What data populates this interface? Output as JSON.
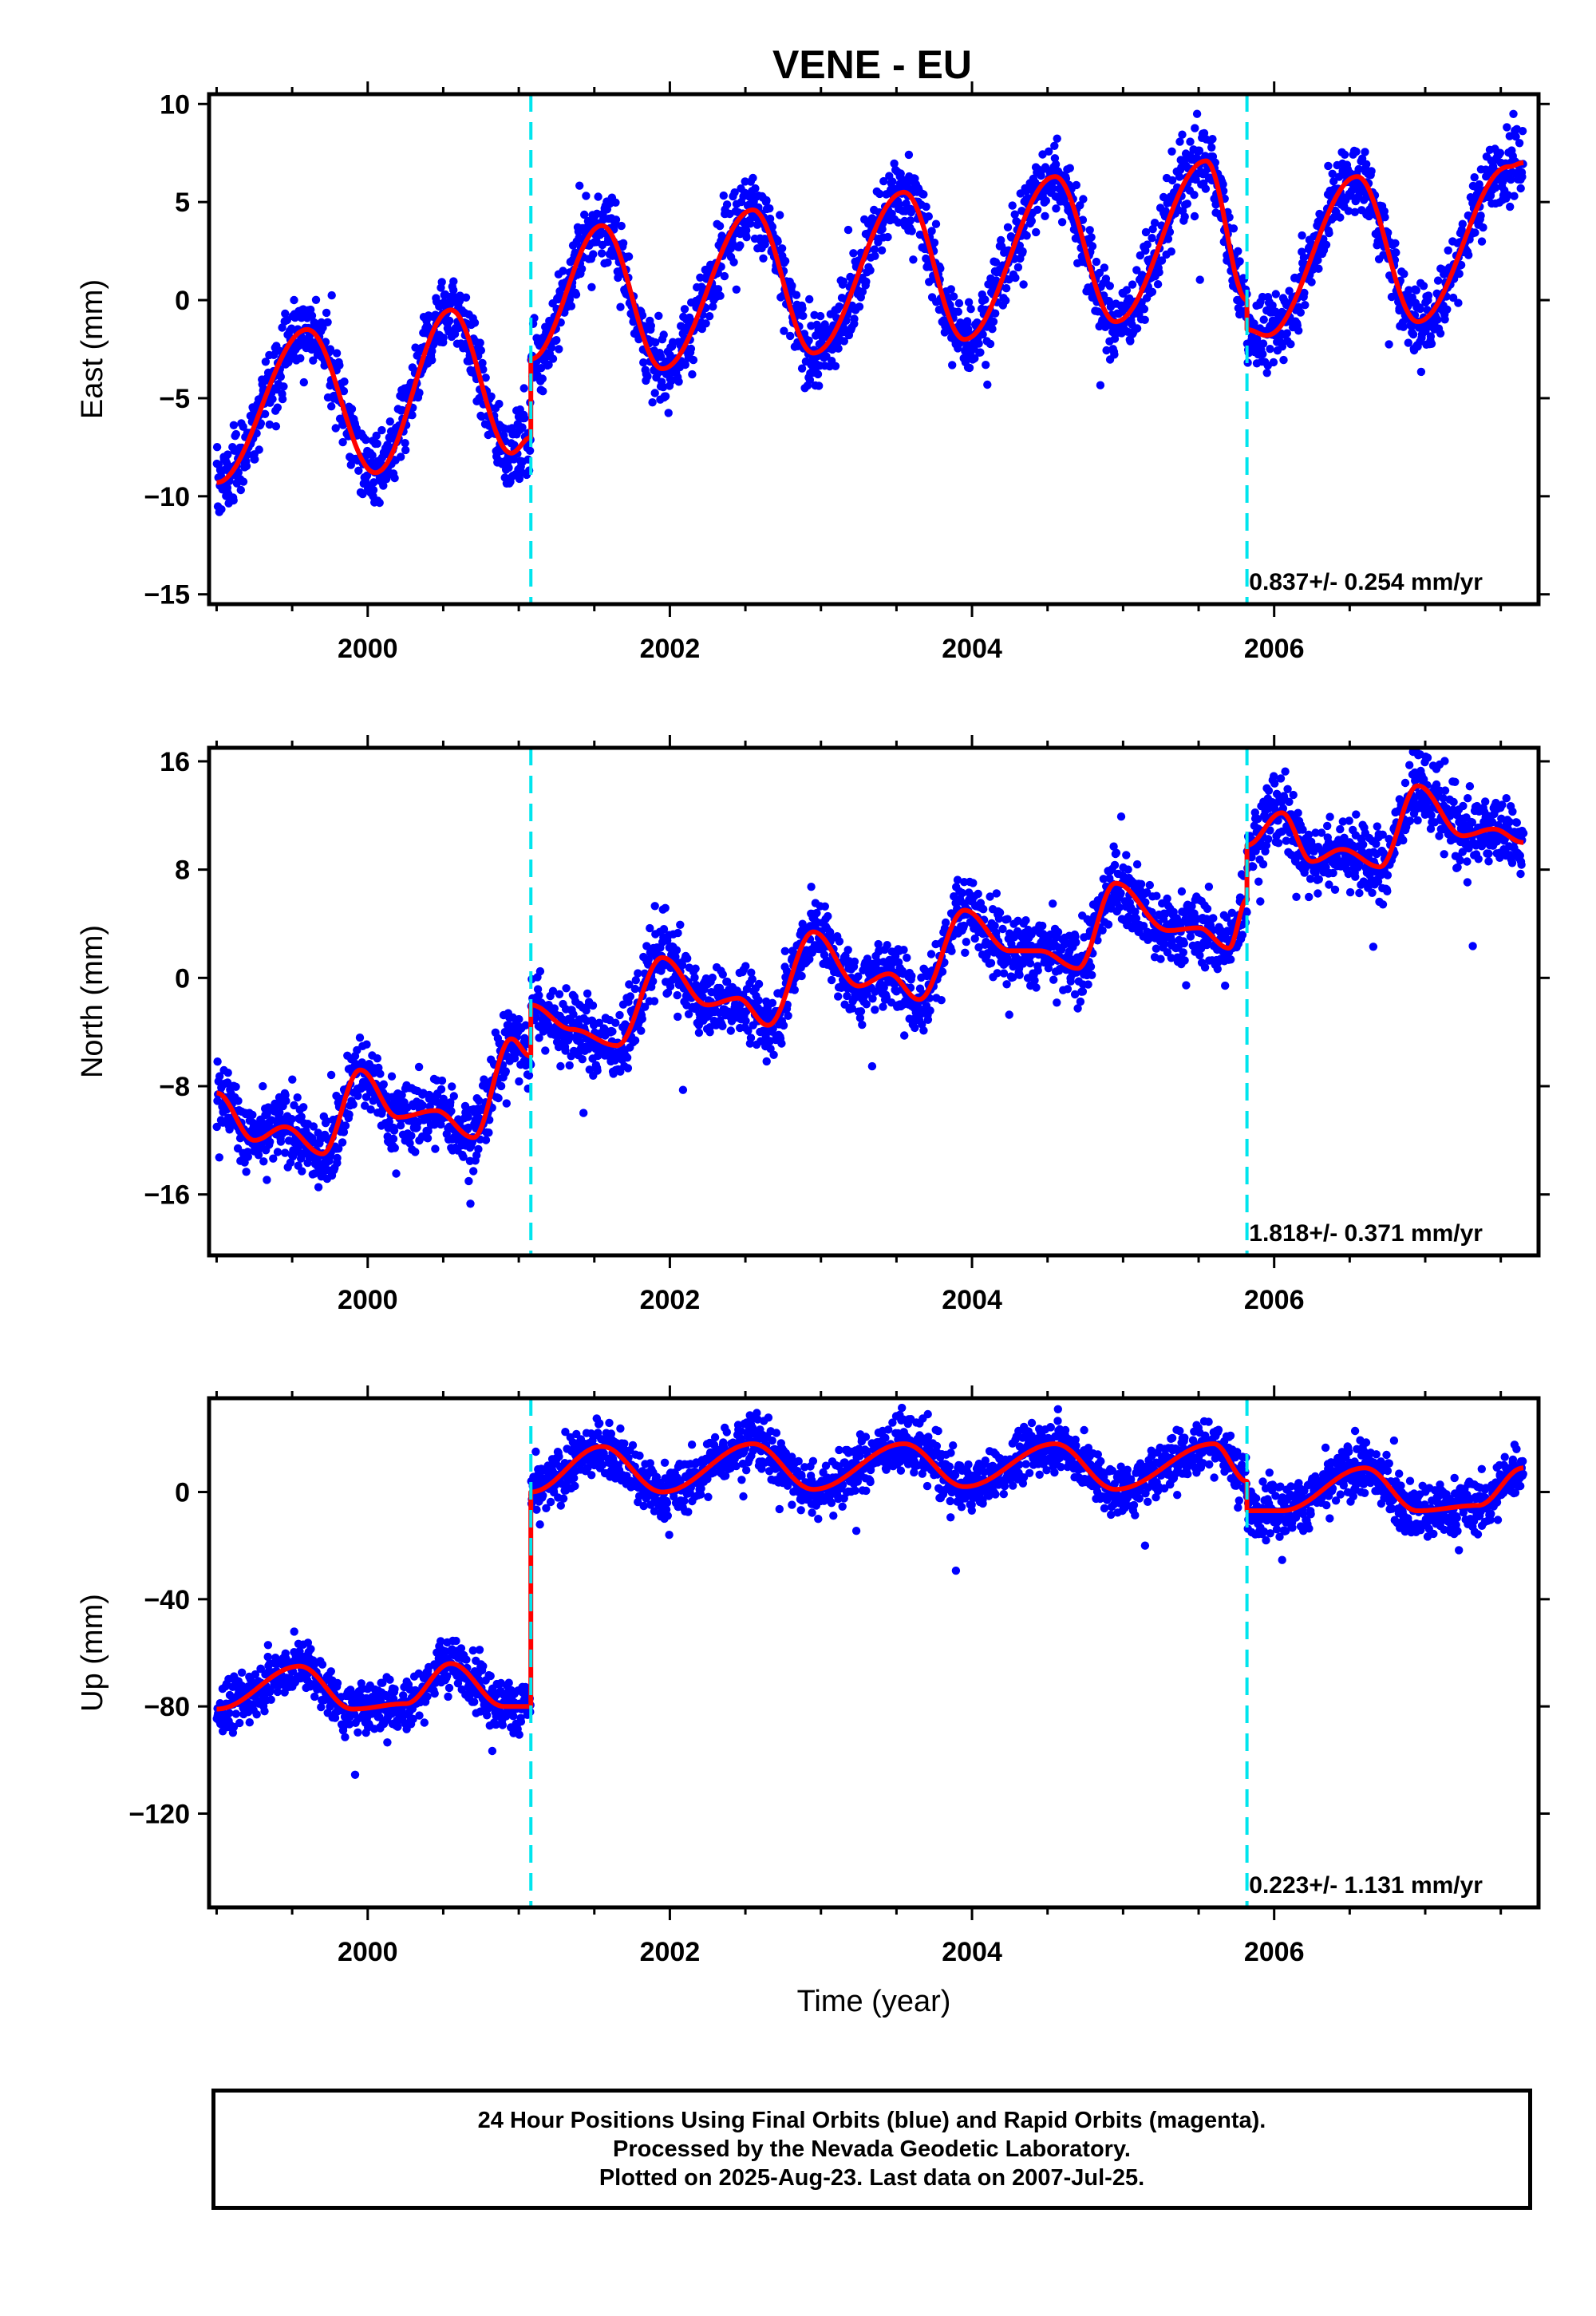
{
  "title": "VENE - EU",
  "colors": {
    "points": "#0000ff",
    "fit": "#ff0000",
    "breaks": "#00e5ee",
    "frame": "#000000"
  },
  "chart_data": [
    {
      "type": "scatter",
      "ylabel": "East (mm)",
      "ylim": [
        -15.5,
        10.5
      ],
      "yticks": [
        10,
        5,
        0,
        -5,
        -10,
        -15
      ],
      "ytick_labels": [
        "10",
        "5",
        "0",
        "−5",
        "−10",
        "−15"
      ],
      "xlim": [
        1998.95,
        2007.75
      ],
      "xticks": [
        2000,
        2002,
        2004,
        2006
      ],
      "breaks": [
        2001.08,
        2005.82
      ],
      "rate_label": "0.837+/- 0.254 mm/yr",
      "fit": {
        "segments": [
          {
            "x": [
              1999.0,
              1999.6,
              2000.05,
              2000.55,
              2000.95,
              2001.08
            ],
            "y": [
              -9.3,
              -1.5,
              -8.8,
              -0.5,
              -7.8,
              -7.0
            ]
          },
          {
            "x": [
              2001.08,
              2001.55,
              2001.95,
              2002.55,
              2002.95,
              2003.55,
              2003.95,
              2004.55,
              2004.95,
              2005.55,
              2005.82
            ],
            "y": [
              -3.0,
              3.8,
              -3.5,
              4.6,
              -2.7,
              5.5,
              -2.0,
              6.3,
              -1.1,
              7.1,
              0.0
            ]
          },
          {
            "x": [
              2005.82,
              2005.95,
              2006.55,
              2006.95,
              2007.55,
              2007.65
            ],
            "y": [
              -1.5,
              -1.8,
              6.3,
              -1.1,
              6.8,
              7.0
            ]
          }
        ]
      },
      "scatter_noise": 1.3
    },
    {
      "type": "scatter",
      "ylabel": "North (mm)",
      "ylim": [
        -20.5,
        17.0
      ],
      "yticks": [
        16,
        8,
        0,
        -8,
        -16
      ],
      "ytick_labels": [
        "16",
        "8",
        "0",
        "−8",
        "−16"
      ],
      "xlim": [
        1998.95,
        2007.75
      ],
      "xticks": [
        2000,
        2002,
        2004,
        2006
      ],
      "breaks": [
        2001.08,
        2005.82
      ],
      "rate_label": "1.818+/- 0.371 mm/yr",
      "fit": {
        "segments": [
          {
            "x": [
              1999.0,
              1999.25,
              1999.45,
              1999.7,
              1999.95,
              2000.2,
              2000.45,
              2000.7,
              2000.95,
              2001.08
            ],
            "y": [
              -8.5,
              -12.0,
              -11.0,
              -13.0,
              -6.8,
              -10.3,
              -9.8,
              -11.8,
              -4.5,
              -5.8
            ]
          },
          {
            "x": [
              2001.08,
              2001.35,
              2001.65,
              2001.95,
              2002.25,
              2002.45,
              2002.65,
              2002.95,
              2003.25,
              2003.45,
              2003.65,
              2003.95,
              2004.25,
              2004.45,
              2004.7,
              2004.95,
              2005.3,
              2005.5,
              2005.7,
              2005.82
            ],
            "y": [
              -2.0,
              -3.8,
              -5.0,
              1.5,
              -2.0,
              -1.5,
              -3.5,
              3.4,
              -0.6,
              0.3,
              -1.6,
              5.0,
              2.0,
              2.0,
              0.7,
              7.0,
              3.5,
              3.7,
              2.2,
              5.8
            ]
          },
          {
            "x": [
              2005.82,
              2006.05,
              2006.25,
              2006.45,
              2006.7,
              2006.95,
              2007.25,
              2007.45,
              2007.65
            ],
            "y": [
              9.8,
              12.2,
              8.6,
              9.5,
              8.2,
              14.2,
              10.5,
              11.0,
              10.0
            ]
          }
        ]
      },
      "scatter_noise": 1.8
    },
    {
      "type": "scatter",
      "ylabel": "Up (mm)",
      "ylim": [
        -155,
        35
      ],
      "yticks": [
        0,
        -40,
        -80,
        -120
      ],
      "ytick_labels": [
        "0",
        "−40",
        "−80",
        "−120"
      ],
      "xlim": [
        1998.95,
        2007.75
      ],
      "xticks": [
        2000,
        2002,
        2004,
        2006
      ],
      "xlabel": "Time (year)",
      "breaks": [
        2001.08,
        2005.82
      ],
      "rate_label": "0.223+/- 1.131 mm/yr",
      "fit": {
        "segments": [
          {
            "x": [
              1999.0,
              1999.55,
              1999.9,
              2000.25,
              2000.55,
              2000.9,
              2001.08
            ],
            "y": [
              -81,
              -65,
              -81,
              -79,
              -64,
              -80,
              -80
            ]
          },
          {
            "x": [
              2001.08,
              2001.55,
              2001.95,
              2002.55,
              2002.95,
              2003.55,
              2003.95,
              2004.55,
              2004.95,
              2005.6,
              2005.82
            ],
            "y": [
              0,
              17,
              0,
              18,
              1,
              18,
              2,
              18,
              1,
              18,
              4
            ]
          },
          {
            "x": [
              2005.82,
              2006.05,
              2006.6,
              2006.95,
              2007.35,
              2007.65
            ],
            "y": [
              -7,
              -7,
              9,
              -7,
              -5,
              9
            ]
          }
        ]
      },
      "scatter_noise": 7
    }
  ],
  "footer": {
    "line1": "24 Hour Positions Using Final Orbits (blue) and Rapid Orbits (magenta).",
    "line2": "Processed by the Nevada Geodetic Laboratory.",
    "line3": "Plotted on 2025-Aug-23. Last data on 2007-Jul-25."
  }
}
